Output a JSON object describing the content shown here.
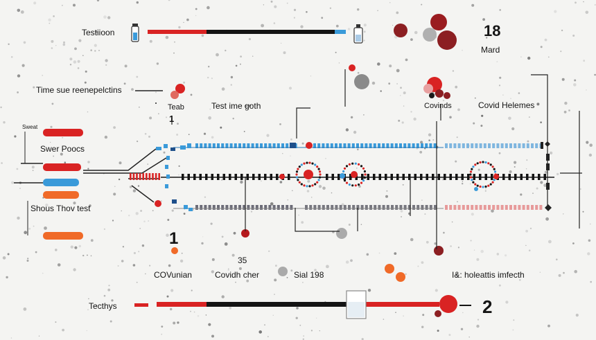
{
  "colors": {
    "red": "#d92323",
    "dark_red": "#8c1f22",
    "blue": "#3a9ad9",
    "orange": "#f06a28",
    "black": "#141414",
    "gray": "#9a9a9a",
    "pink": "#e8a0a0"
  },
  "labels": {
    "top_left": "Testiioon",
    "top_right_number": "18",
    "top_right_word": "Mard",
    "time_label": "Time sue reenepelctins",
    "teab": "Teab",
    "one_top": "1",
    "test_ime": "Test ime goth",
    "covinds": "Covinds",
    "covid_helemes": "Covid Helemes",
    "sweat_left": "Sweat",
    "swer_poocs": "Swer Poocs",
    "shous_thov": "Shous Thov test",
    "one_bottom": "1",
    "covunian": "COVunian",
    "num_35": "35",
    "covidh_cher": "Covidh cher",
    "sial": "Sial 198",
    "lt_holeattis": "I&: holeattis imfecth",
    "tecthys": "Tecthys",
    "two": "2"
  }
}
